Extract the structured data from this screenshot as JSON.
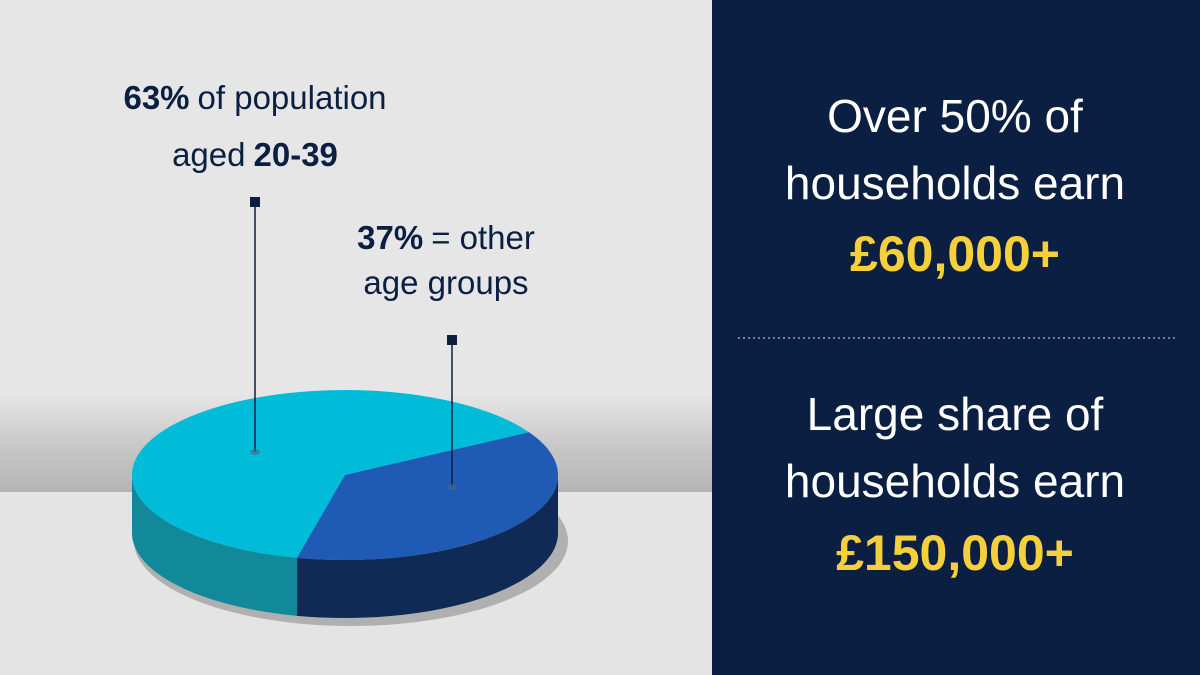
{
  "chart_data": {
    "type": "pie",
    "values": [
      63,
      37
    ],
    "value_labels": [
      "63%",
      "37%"
    ],
    "colors": [
      "#00bcd8",
      "#1f5bb5"
    ],
    "annotations": [
      {
        "lines": [
          [
            "of population"
          ],
          [
            "aged",
            "20-39"
          ]
        ]
      },
      {
        "lines": [
          [
            "= other"
          ],
          [
            "age groups"
          ]
        ]
      }
    ]
  },
  "panel": {
    "blocks": [
      {
        "lines": [
          "Over 50% of",
          "households earn"
        ],
        "highlight": "£60,000+"
      },
      {
        "lines": [
          "Large share of",
          "households earn"
        ],
        "highlight": "£150,000+"
      }
    ]
  }
}
